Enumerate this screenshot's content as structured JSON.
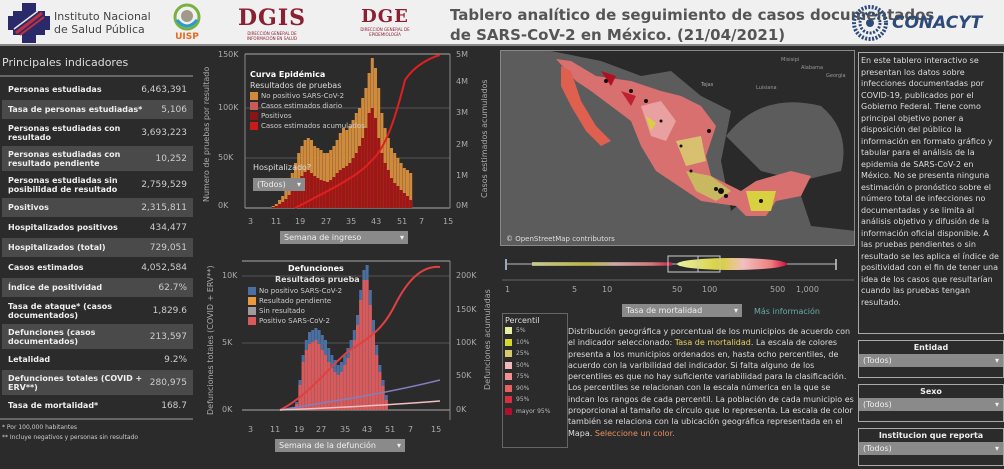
{
  "header": {
    "logos": {
      "insp": "Instituto Nacional de Salud Pública",
      "insp_line1": "Instituto Nacional",
      "insp_line2": "de Salud Pública",
      "uisp": "UISP",
      "dgis": "DGIS",
      "dgis_sub": "DIRECCIÓN GENERAL DE INFORMACIÓN EN SALUD",
      "dge": "DGE",
      "dge_sub": "DIRECCIÓN GENERAL DE EPIDEMIOLOGÍA",
      "conacyt": "CONACYT"
    },
    "title_line1": "Tablero analítico de seguimiento de casos documentados",
    "title_line2": "de SARS-CoV-2 en México. (21/04/2021)"
  },
  "indicators": {
    "title": "Principales indicadores",
    "items": [
      {
        "label": "Personas estudiadas",
        "value": "6,463,391"
      },
      {
        "label": "Tasa de personas estudiadas*",
        "value": "5,106"
      },
      {
        "label": "Personas estudiadas con resultado",
        "value": "3,693,223"
      },
      {
        "label": "Personas estudiadas con resultado pendiente",
        "value": "10,252"
      },
      {
        "label": "Personas estudiadas sin posibilidad de resultado",
        "value": "2,759,529"
      },
      {
        "label": "Positivos",
        "value": "2,315,811"
      },
      {
        "label": "Hospitalizados positivos",
        "value": "434,477"
      },
      {
        "label": "Hospitalizados (total)",
        "value": "729,051"
      },
      {
        "label": "Casos estimados",
        "value": "4,052,584"
      },
      {
        "label": "Índice de positividad",
        "value": "62.7%"
      },
      {
        "label": "Tasa de ataque* (casos documentados)",
        "value": "1,829.6"
      },
      {
        "label": "Defunciones (casos documentados)",
        "value": "213,597"
      },
      {
        "label": "Letalidad",
        "value": "9.2%"
      },
      {
        "label": "Defunciones totales (COVID + ERV**)",
        "value": "280,975"
      },
      {
        "label": "Tasa de mortalidad*",
        "value": "168.7"
      }
    ],
    "note1": "*   Por 100,000 habitantes",
    "note2": "**  Incluye negativos y personas sin resultado"
  },
  "epi_chart": {
    "title": "Curva Epidémica",
    "subtitle": "Resultados de pruebas",
    "legend": [
      {
        "label": "No positivo SARS-CoV-2",
        "color": "#d08a3c"
      },
      {
        "label": "Casos estimados diario",
        "color": "#c85a5a"
      },
      {
        "label": "Positivos",
        "color": "#8b1515"
      },
      {
        "label": "Casos estimados acumulados",
        "color": "#cc1a1a"
      }
    ],
    "ylabel_left": "Numero de pruebas por resultado",
    "ylabel_right": "Casos estimados acumulados",
    "yticks_left": [
      "150K",
      "100K",
      "50K",
      "0K"
    ],
    "yticks_right": [
      "5M",
      "4M",
      "3M",
      "2M",
      "1M",
      "0M"
    ],
    "xticks": [
      "3",
      "11",
      "19",
      "27",
      "35",
      "43",
      "51",
      "7",
      "15"
    ],
    "hosp_label": "Hospitalizado?",
    "hosp_value": "(Todos)",
    "x_select": "Semana de ingreso"
  },
  "def_chart": {
    "title": "Defunciones",
    "subtitle": "Resultados prueba",
    "legend": [
      {
        "label": "No positivo SARS-CoV-2",
        "color": "#4a6fa0"
      },
      {
        "label": "Resultado pendiente",
        "color": "#e89a3c"
      },
      {
        "label": "Sin resultado",
        "color": "#a09aa0"
      },
      {
        "label": "Positivo SARS-CoV-2",
        "color": "#d85a5a"
      }
    ],
    "ylabel_left": "Defunciones totales (COVID + ERV**)",
    "ylabel_right": "Defunciones acumuladas",
    "yticks_left": [
      "10K",
      "5K",
      "0K"
    ],
    "yticks_right": [
      "200K",
      "150K",
      "100K",
      "50K",
      "0K"
    ],
    "xticks": [
      "3",
      "11",
      "19",
      "27",
      "35",
      "43",
      "51",
      "7",
      "15"
    ],
    "x_select": "Semana de la defunción"
  },
  "map": {
    "attribution": "© OpenStreetMap contributors",
    "labels": [
      "Tejas",
      "Luisiana",
      "Misisipi",
      "Alabama",
      "Georgia"
    ]
  },
  "boxplot": {
    "xticks": [
      "1",
      "5",
      "10",
      "50",
      "100",
      "500",
      "1,000"
    ],
    "indicator_select": "Tasa de mortalidad",
    "more_info": "Más información"
  },
  "percentil": {
    "title": "Percentil",
    "items": [
      {
        "label": "5%",
        "color": "#e8f0a0"
      },
      {
        "label": "10%",
        "color": "#d4d830"
      },
      {
        "label": "25%",
        "color": "#d8c870"
      },
      {
        "label": "50%",
        "color": "#f0b8b8"
      },
      {
        "label": "75%",
        "color": "#f09090"
      },
      {
        "label": "90%",
        "color": "#e86060"
      },
      {
        "label": "95%",
        "color": "#d83040"
      },
      {
        "label": "mayor 95%",
        "color": "#b01030"
      }
    ]
  },
  "description": {
    "p1": "Distribución geográfica y porcentual de los municipios de acuerdo con el indicador seleccionado: ",
    "indicator": "Tasa de mortalidad",
    "p2": ". La escala de colores presenta a los municipios ordenados en, hasta ocho percentiles, de acuerdo con la varibilidad del indicador. Si falta alguno de los percentiles es que no hay suficiente variabilidad para la clasificación. Los percentiles se relacionan con la escala númerica en la que se indcan los rangos de cada percentil. La población de cada municipio es proporcional al tamaño de círculo que lo representa. La escala de color también se relaciona con la ubicación geográfica representada en el Mapa. ",
    "link": "Seleccione un color."
  },
  "info_text": "En este tablero interactivo se presentan los datos sobre infecciones documentadas por COVID-19, publicados por el Gobierno Federal. Tiene como principal objetivo poner a disposición del público la información en formato gráfico y tabular para el análisis de la epidemia de SARS-CoV-2 en México. No se presenta ninguna estimación o pronóstico sobre el número total de infecciones no documentadas y se limita al análisis objetivo y difusión de la información oficial disponible. A las pruebas pendientes o sin resultado se les aplica el índice de positividad con el fin de tener una idea de los casos que resultarían cuando las pruebas tengan resultado.",
  "filters": [
    {
      "label": "Entidad",
      "value": "(Todos)"
    },
    {
      "label": "Sexo",
      "value": "(Todos)"
    },
    {
      "label": "Institucion que reporta",
      "value": "(Todos)"
    }
  ]
}
